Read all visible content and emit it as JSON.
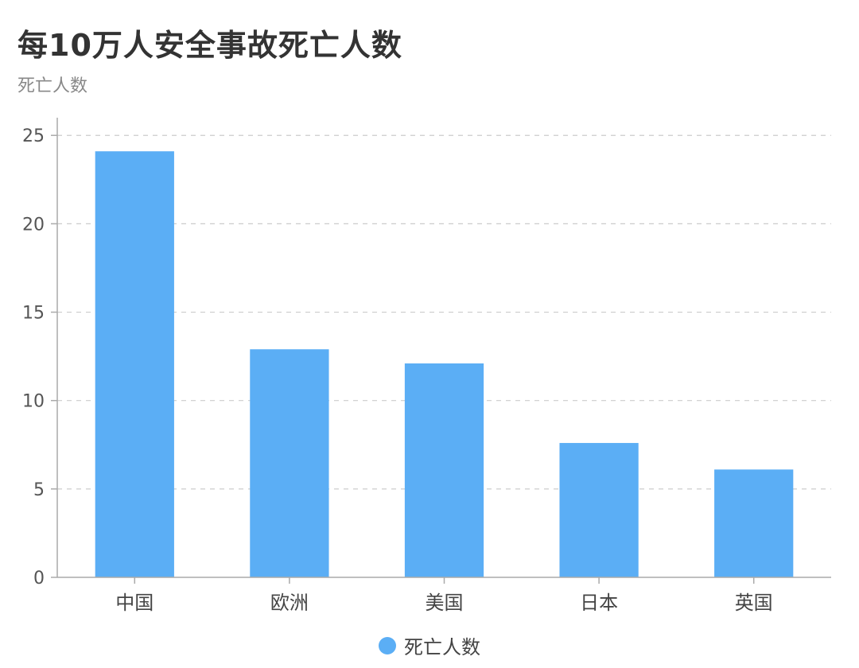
{
  "title": "每10万人安全事故死亡人数",
  "subtitle": "死亡人数",
  "chart_data": {
    "type": "bar",
    "categories": [
      "中国",
      "欧洲",
      "美国",
      "日本",
      "英国"
    ],
    "series": [
      {
        "name": "死亡人数",
        "values": [
          24.1,
          12.9,
          12.1,
          7.6,
          6.1
        ]
      }
    ],
    "ylabel": "死亡人数",
    "ylim": [
      0,
      26
    ],
    "yticks": [
      0,
      5,
      10,
      15,
      20,
      25
    ],
    "grid": true,
    "legend_position": "bottom",
    "bar_color": "#5baef5"
  }
}
